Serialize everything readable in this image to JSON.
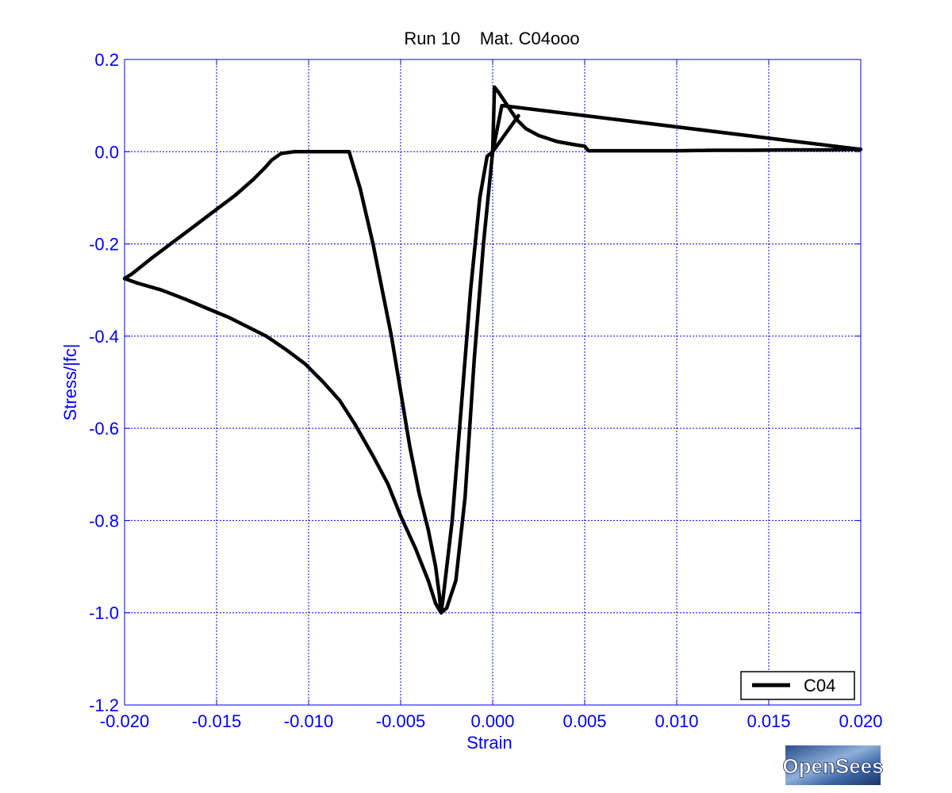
{
  "chart_data": {
    "type": "line",
    "title": "Run 10    Mat. C04ooo",
    "xlabel": "Strain",
    "ylabel": "Stress/|fc|",
    "xlim": [
      -0.02,
      0.02
    ],
    "ylim": [
      -1.2,
      0.2
    ],
    "x_ticks": [
      "-0.020",
      "-0.015",
      "-0.010",
      "-0.005",
      "0.000",
      "0.005",
      "0.010",
      "0.015",
      "0.020"
    ],
    "y_ticks": [
      "0.2",
      "0.0",
      "-0.2",
      "-0.4",
      "-0.6",
      "-0.8",
      "-1.0",
      "-1.2"
    ],
    "grid": true,
    "legend_position": "bottom-right",
    "series": [
      {
        "name": "C04",
        "color": "#000000",
        "x": [
          0.0,
          -0.0005,
          -0.001,
          -0.0015,
          -0.002,
          -0.0025,
          -0.0028,
          -0.0031,
          -0.0035,
          -0.0042,
          -0.005,
          -0.0057,
          -0.0065,
          -0.0075,
          -0.0083,
          -0.0092,
          -0.0102,
          -0.0112,
          -0.0123,
          -0.0133,
          -0.0143,
          -0.0155,
          -0.0167,
          -0.018,
          -0.0193,
          -0.02,
          -0.0196,
          -0.0185,
          -0.017,
          -0.0155,
          -0.014,
          -0.013,
          -0.0124,
          -0.012,
          -0.0115,
          -0.0108,
          -0.01,
          -0.009,
          -0.0082,
          -0.0078,
          -0.0072,
          -0.0065,
          -0.006,
          -0.0055,
          -0.005,
          -0.0045,
          -0.004,
          -0.0035,
          -0.0031,
          -0.0029,
          -0.0028,
          -0.0027,
          -0.0022,
          -0.0017,
          -0.0012,
          -0.0007,
          -0.0003,
          0.0,
          0.0001,
          0.0003,
          0.0008,
          0.0013,
          0.0018,
          0.0025,
          0.0035,
          0.0045,
          0.005,
          0.0052,
          0.006,
          0.008,
          0.01,
          0.012,
          0.014,
          0.016,
          0.018,
          0.02,
          0.0005,
          0.0,
          0.0014,
          0.0
        ],
        "y": [
          0.0,
          -0.2,
          -0.45,
          -0.75,
          -0.93,
          -0.99,
          -1.0,
          -0.98,
          -0.93,
          -0.86,
          -0.79,
          -0.72,
          -0.66,
          -0.59,
          -0.54,
          -0.5,
          -0.46,
          -0.43,
          -0.4,
          -0.38,
          -0.36,
          -0.34,
          -0.32,
          -0.3,
          -0.285,
          -0.275,
          -0.265,
          -0.23,
          -0.185,
          -0.14,
          -0.095,
          -0.06,
          -0.036,
          -0.018,
          -0.004,
          0.0,
          0.0,
          0.0,
          0.0,
          0.0,
          -0.08,
          -0.2,
          -0.3,
          -0.4,
          -0.52,
          -0.64,
          -0.74,
          -0.82,
          -0.9,
          -0.96,
          -1.0,
          -0.97,
          -0.8,
          -0.55,
          -0.3,
          -0.1,
          -0.01,
          0.0,
          0.14,
          0.13,
          0.1,
          0.07,
          0.05,
          0.035,
          0.022,
          0.015,
          0.012,
          0.002,
          0.002,
          0.002,
          0.002,
          0.003,
          0.003,
          0.004,
          0.004,
          0.005,
          0.1,
          0.0,
          0.078,
          0.0
        ]
      }
    ],
    "line_width": 4.5
  },
  "branding": {
    "logo_text": "OpenSees"
  }
}
